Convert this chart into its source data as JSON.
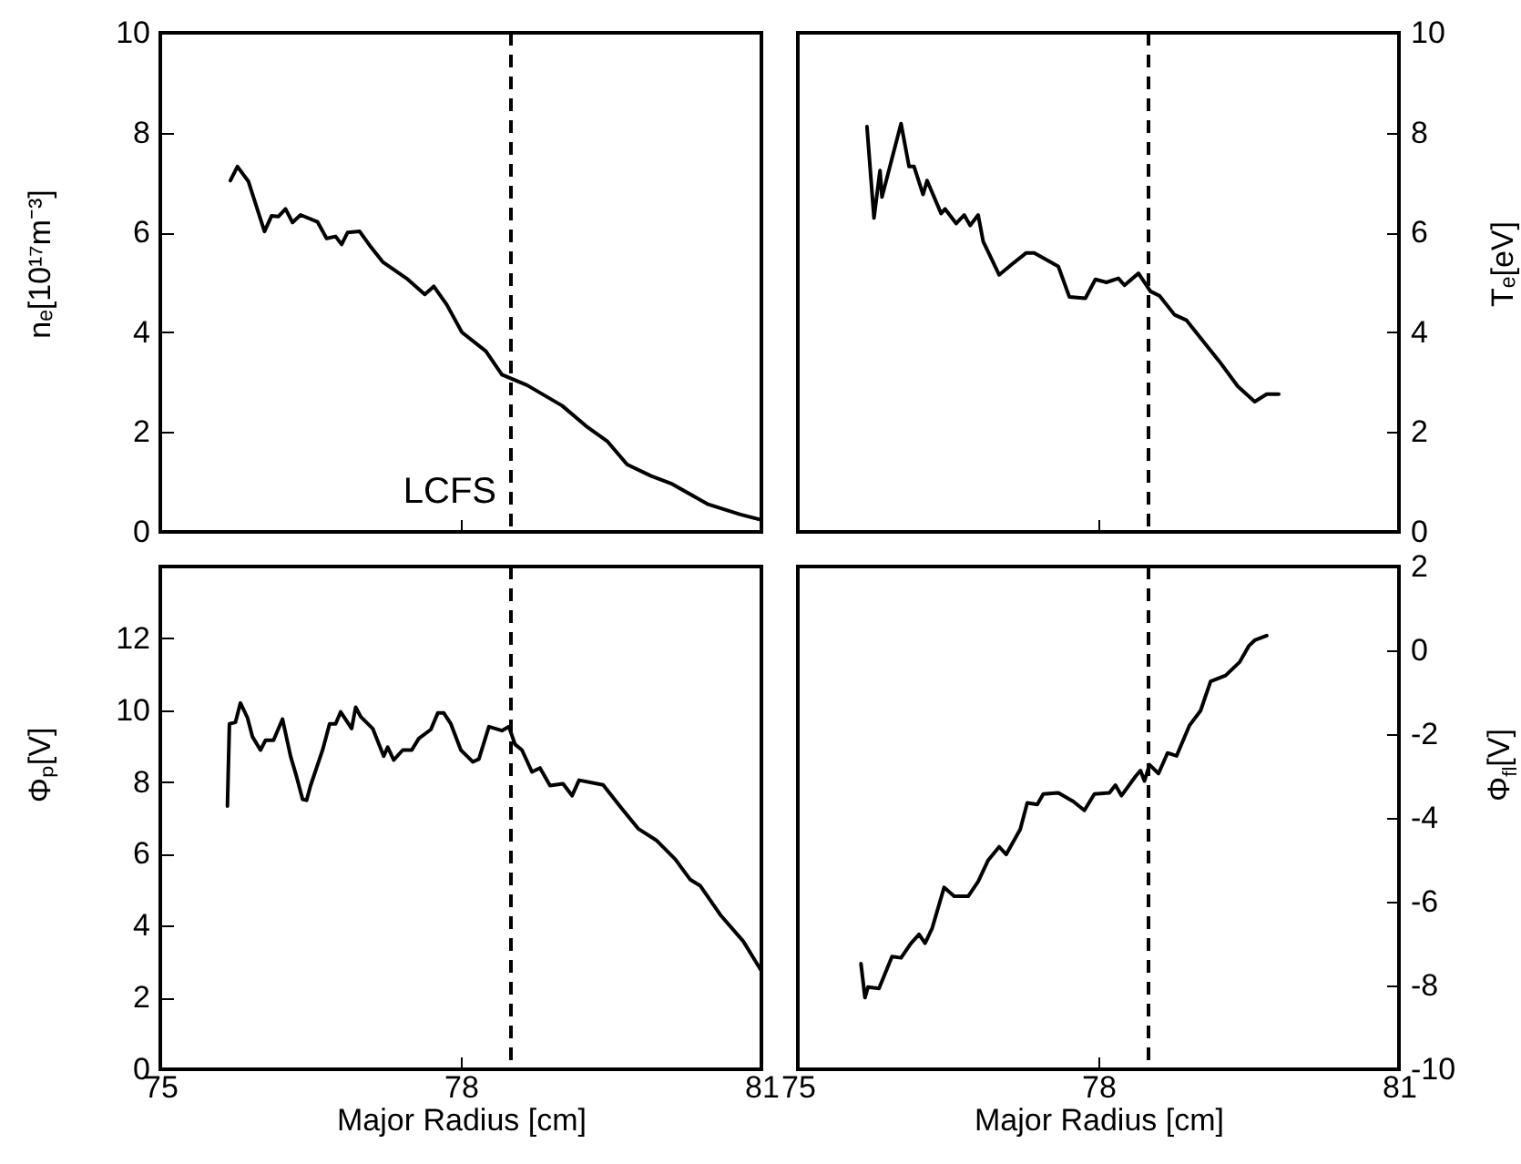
{
  "chart_data": [
    {
      "type": "line",
      "ylabel": "nₑ[10¹⁷m⁻³]",
      "xlim": [
        75,
        81
      ],
      "xticks": [
        75,
        78,
        81
      ],
      "ylim": [
        0,
        10
      ],
      "yticks": [
        0,
        2,
        4,
        6,
        8,
        10
      ],
      "tick_labels": "y",
      "x": [
        75.7,
        75.77,
        75.88,
        76.04,
        76.11,
        76.18,
        76.25,
        76.32,
        76.4,
        76.57,
        76.66,
        76.75,
        76.81,
        76.87,
        76.99,
        77.09,
        77.22,
        77.47,
        77.64,
        77.73,
        77.86,
        78.01,
        78.25,
        78.41,
        78.66,
        79.01,
        79.25,
        79.46,
        79.66,
        79.9,
        80.11,
        80.46,
        80.79,
        81.0
      ],
      "series": [
        {
          "color": "#000000",
          "values": [
            7.04,
            7.32,
            7.02,
            6.02,
            6.33,
            6.32,
            6.47,
            6.2,
            6.35,
            6.21,
            5.88,
            5.92,
            5.76,
            6.0,
            6.02,
            5.74,
            5.41,
            5.06,
            4.76,
            4.92,
            4.55,
            4.0,
            3.62,
            3.15,
            2.94,
            2.53,
            2.12,
            1.82,
            1.35,
            1.12,
            0.96,
            0.56,
            0.35,
            0.24
          ]
        }
      ],
      "ref_lines": [
        {
          "axis": "x",
          "value": 78.5,
          "label": "LCFS",
          "color": "#000000",
          "line_style": "dashed"
        }
      ]
    },
    {
      "type": "line",
      "ylabel": "Tₑ[eV]",
      "xlim": [
        75,
        81
      ],
      "xticks": [
        75,
        78,
        81
      ],
      "ylim": [
        0,
        10
      ],
      "yticks": [
        0,
        2,
        4,
        6,
        8,
        10
      ],
      "tick_labels": "y",
      "x": [
        75.69,
        75.76,
        75.82,
        75.84,
        76.03,
        76.11,
        76.16,
        76.25,
        76.29,
        76.43,
        76.47,
        76.58,
        76.66,
        76.72,
        76.8,
        76.85,
        77.01,
        77.13,
        77.28,
        77.36,
        77.6,
        77.71,
        77.87,
        77.97,
        78.08,
        78.2,
        78.26,
        78.4,
        78.52,
        78.61,
        78.76,
        78.88,
        79.09,
        79.21,
        79.39,
        79.56,
        79.68,
        79.8
      ],
      "series": [
        {
          "color": "#000000",
          "values": [
            8.12,
            6.29,
            7.24,
            6.71,
            8.18,
            7.32,
            7.32,
            6.76,
            7.04,
            6.38,
            6.47,
            6.18,
            6.35,
            6.14,
            6.35,
            5.82,
            5.15,
            5.35,
            5.59,
            5.59,
            5.32,
            4.71,
            4.68,
            5.06,
            5.0,
            5.08,
            4.94,
            5.18,
            4.82,
            4.73,
            4.35,
            4.24,
            3.71,
            3.41,
            2.92,
            2.61,
            2.76,
            2.76
          ]
        }
      ],
      "ref_lines": [
        {
          "axis": "x",
          "value": 78.5,
          "color": "#000000",
          "line_style": "dashed"
        }
      ]
    },
    {
      "type": "line",
      "xlabel": "Major Radius [cm]",
      "ylabel": "Φₚ[V]",
      "xlim": [
        75,
        81
      ],
      "xticks": [
        75,
        78,
        81
      ],
      "ylim": [
        0,
        14
      ],
      "yticks": [
        0,
        2,
        4,
        6,
        8,
        10,
        12
      ],
      "x": [
        75.67,
        75.69,
        75.75,
        75.8,
        75.87,
        75.92,
        76.0,
        76.05,
        76.13,
        76.22,
        76.3,
        76.36,
        76.42,
        76.46,
        76.5,
        76.62,
        76.69,
        76.75,
        76.8,
        76.91,
        76.95,
        77.0,
        77.12,
        77.23,
        77.27,
        77.33,
        77.42,
        77.51,
        77.58,
        77.7,
        77.77,
        77.83,
        77.9,
        78.0,
        78.12,
        78.18,
        78.28,
        78.41,
        78.48,
        78.54,
        78.61,
        78.71,
        78.79,
        78.89,
        79.02,
        79.11,
        79.18,
        79.42,
        79.61,
        79.77,
        79.95,
        80.14,
        80.29,
        80.39,
        80.59,
        80.82,
        81.0
      ],
      "series": [
        {
          "color": "#000000",
          "values": [
            7.33,
            9.62,
            9.66,
            10.2,
            9.79,
            9.26,
            8.89,
            9.16,
            9.16,
            9.75,
            8.72,
            8.15,
            7.52,
            7.49,
            7.9,
            8.89,
            9.62,
            9.62,
            9.95,
            9.49,
            10.08,
            9.82,
            9.49,
            8.72,
            8.97,
            8.61,
            8.89,
            8.89,
            9.21,
            9.46,
            9.92,
            9.92,
            9.62,
            8.89,
            8.56,
            8.64,
            9.54,
            9.43,
            9.54,
            9.05,
            8.89,
            8.28,
            8.39,
            7.9,
            7.95,
            7.62,
            8.05,
            7.92,
            7.25,
            6.7,
            6.38,
            5.85,
            5.28,
            5.11,
            4.3,
            3.56,
            2.74
          ]
        }
      ],
      "ref_lines": [
        {
          "axis": "x",
          "value": 78.5,
          "color": "#000000",
          "line_style": "dashed"
        }
      ]
    },
    {
      "type": "line",
      "xlabel": "Major Radius [cm]",
      "ylabel": "Φ$_{fl}$[V]",
      "xlim": [
        75,
        81
      ],
      "xticks": [
        75,
        78,
        81
      ],
      "ylim": [
        -10,
        2
      ],
      "yticks": [
        -10,
        -8,
        -6,
        -4,
        -2,
        0,
        2
      ],
      "x": [
        75.63,
        75.67,
        75.7,
        75.81,
        75.94,
        76.03,
        76.13,
        76.21,
        76.27,
        76.34,
        76.46,
        76.56,
        76.7,
        76.8,
        76.9,
        77.01,
        77.08,
        77.22,
        77.29,
        77.39,
        77.45,
        77.6,
        77.75,
        77.86,
        77.96,
        78.11,
        78.17,
        78.23,
        78.37,
        78.42,
        78.46,
        78.51,
        78.6,
        78.69,
        78.78,
        78.91,
        79.02,
        79.12,
        79.27,
        79.41,
        79.5,
        79.56,
        79.68
      ],
      "series": [
        {
          "color": "#000000",
          "values": [
            -7.48,
            -8.29,
            -8.04,
            -8.07,
            -7.31,
            -7.34,
            -6.99,
            -6.78,
            -6.99,
            -6.64,
            -5.66,
            -5.87,
            -5.87,
            -5.52,
            -5.01,
            -4.69,
            -4.87,
            -4.27,
            -3.64,
            -3.68,
            -3.43,
            -3.4,
            -3.61,
            -3.82,
            -3.43,
            -3.4,
            -3.22,
            -3.47,
            -3.01,
            -2.87,
            -3.12,
            -2.73,
            -2.94,
            -2.45,
            -2.52,
            -1.79,
            -1.44,
            -0.74,
            -0.6,
            -0.28,
            0.1,
            0.24,
            0.35
          ]
        }
      ],
      "ref_lines": [
        {
          "axis": "x",
          "value": 78.5,
          "color": "#000000",
          "line_style": "dashed"
        }
      ]
    }
  ]
}
